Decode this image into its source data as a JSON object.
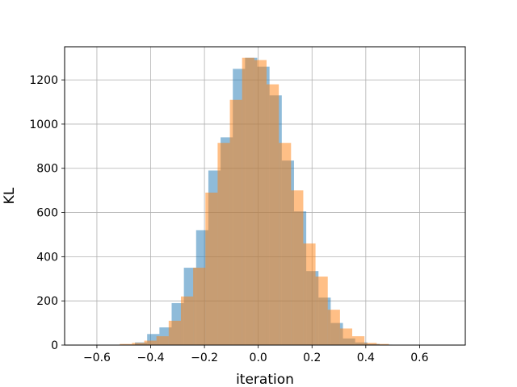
{
  "chart_data": {
    "type": "bar",
    "subtype": "histogram-overlay",
    "title": "",
    "xlabel": "iteration",
    "ylabel": "KL",
    "xlim": [
      -0.72,
      0.77
    ],
    "ylim": [
      0,
      1350
    ],
    "xticks": [
      -0.6,
      -0.4,
      -0.2,
      0.0,
      0.2,
      0.4,
      0.6
    ],
    "xtick_labels": [
      "−0.6",
      "−0.4",
      "−0.2",
      "0.0",
      "0.2",
      "0.4",
      "0.6"
    ],
    "yticks": [
      0,
      200,
      400,
      600,
      800,
      1000,
      1200
    ],
    "ytick_labels": [
      "0",
      "200",
      "400",
      "600",
      "800",
      "1000",
      "1200"
    ],
    "grid": true,
    "legend": "none",
    "series": [
      {
        "color": "#1f77b4",
        "opacity": 0.5,
        "bin_start": -0.504,
        "bin_width": 0.0455,
        "counts": [
          2,
          12,
          50,
          80,
          190,
          350,
          520,
          790,
          940,
          1250,
          1300,
          1260,
          1130,
          835,
          605,
          335,
          215,
          100,
          30,
          12,
          5,
          2,
          1
        ]
      },
      {
        "color": "#ff7f0e",
        "opacity": 0.5,
        "bin_start": -0.515,
        "bin_width": 0.0455,
        "counts": [
          5,
          10,
          20,
          40,
          110,
          220,
          350,
          690,
          915,
          1110,
          1300,
          1290,
          1180,
          915,
          700,
          460,
          310,
          160,
          75,
          40,
          10,
          5
        ]
      }
    ]
  }
}
